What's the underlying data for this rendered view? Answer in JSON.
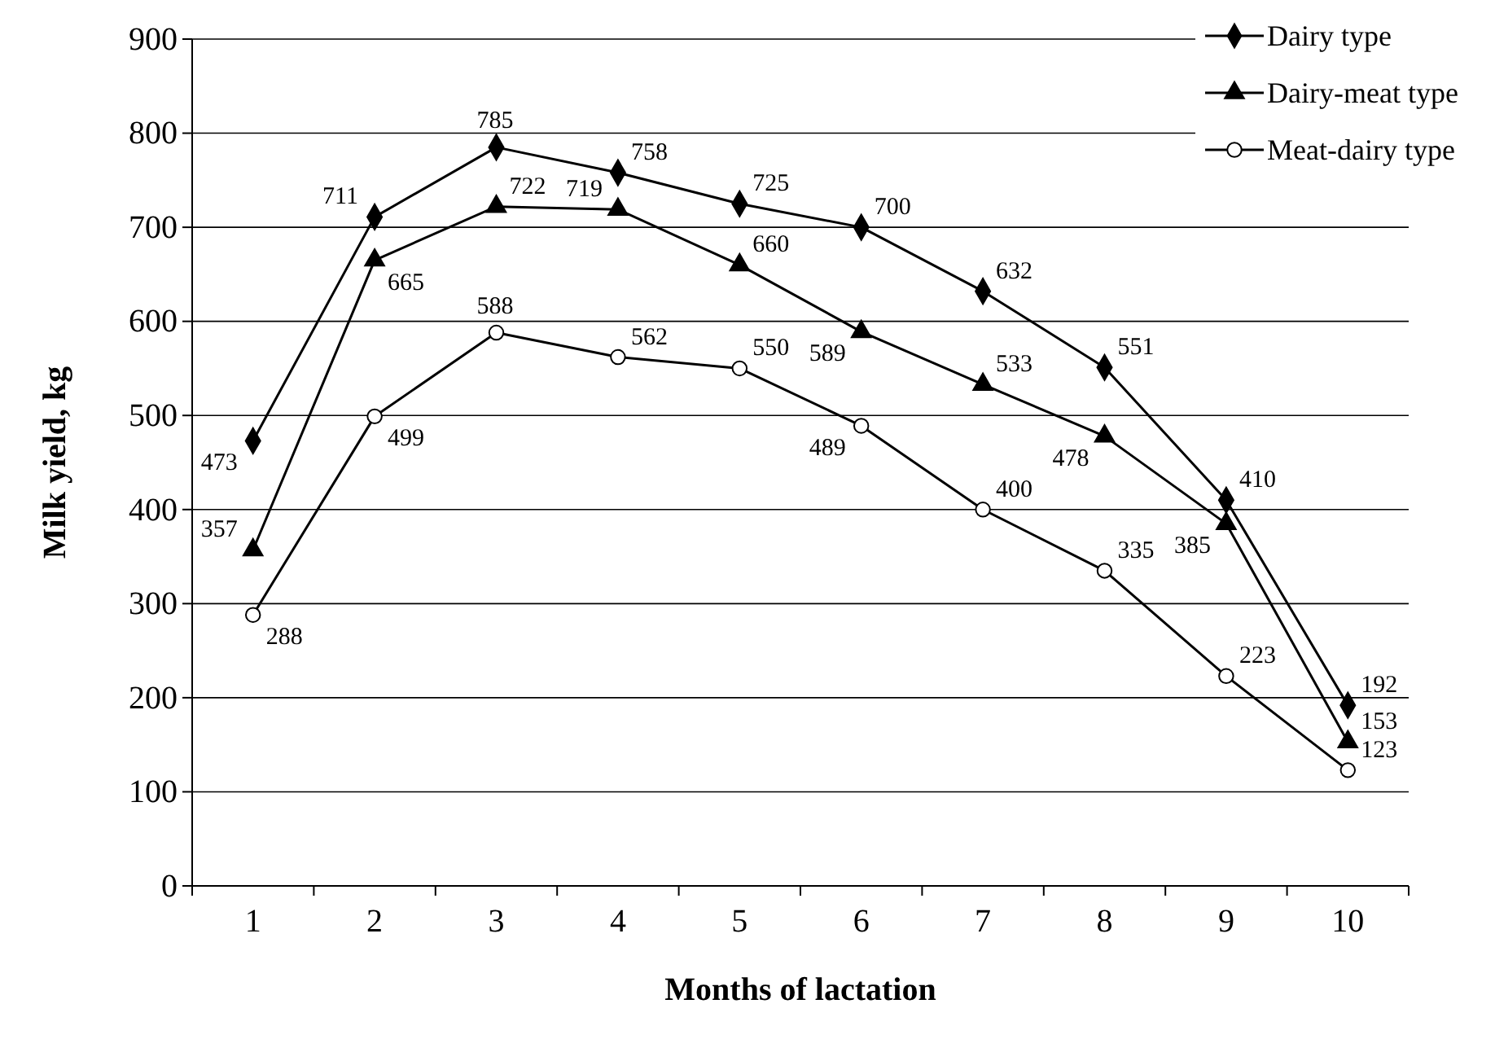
{
  "chart_data": {
    "type": "line",
    "xlabel": "Months of lactation",
    "ylabel": "Milk yield, kg",
    "categories": [
      "1",
      "2",
      "3",
      "4",
      "5",
      "6",
      "7",
      "8",
      "9",
      "10"
    ],
    "series": [
      {
        "name": "Dairy type",
        "color": "#000000",
        "marker": "diamond",
        "values": [
          473,
          711,
          785,
          758,
          725,
          700,
          632,
          551,
          410,
          192
        ]
      },
      {
        "name": "Dairy-meat type",
        "color": "#000000",
        "marker": "triangle",
        "values": [
          357,
          665,
          722,
          719,
          660,
          589,
          533,
          478,
          385,
          153
        ]
      },
      {
        "name": "Meat-dairy type",
        "color": "#000000",
        "marker": "circle",
        "values": [
          288,
          499,
          588,
          562,
          550,
          489,
          400,
          335,
          223,
          123
        ]
      }
    ],
    "ylim": [
      0,
      900
    ],
    "yticks": [
      0,
      100,
      200,
      300,
      400,
      500,
      600,
      700,
      800,
      900
    ],
    "grid": "y",
    "legend": "top right",
    "data_labels": true,
    "line_style": "solid"
  }
}
